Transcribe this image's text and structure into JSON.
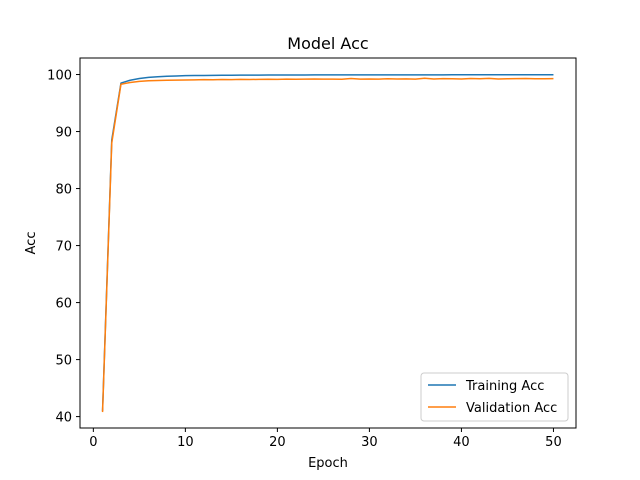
{
  "chart_data": {
    "type": "line",
    "title": "Model Acc",
    "xlabel": "Epoch",
    "ylabel": "Acc",
    "xlim": [
      -1.45,
      52.45
    ],
    "ylim": [
      38,
      102.9
    ],
    "xticks": [
      0,
      10,
      20,
      30,
      40,
      50
    ],
    "yticks": [
      40,
      50,
      60,
      70,
      80,
      90,
      100
    ],
    "grid": false,
    "legend_position": "lower-right",
    "x": [
      1,
      2,
      3,
      4,
      5,
      6,
      7,
      8,
      9,
      10,
      11,
      12,
      13,
      14,
      15,
      16,
      17,
      18,
      19,
      20,
      21,
      22,
      23,
      24,
      25,
      26,
      27,
      28,
      29,
      30,
      31,
      32,
      33,
      34,
      35,
      36,
      37,
      38,
      39,
      40,
      41,
      42,
      43,
      44,
      45,
      46,
      47,
      48,
      49,
      50
    ],
    "series": [
      {
        "name": "Training Acc",
        "color": "#1f77b4",
        "values": [
          41.0,
          88.5,
          98.5,
          99.0,
          99.3,
          99.5,
          99.6,
          99.7,
          99.75,
          99.8,
          99.82,
          99.84,
          99.86,
          99.87,
          99.88,
          99.89,
          99.9,
          99.9,
          99.91,
          99.91,
          99.92,
          99.92,
          99.92,
          99.93,
          99.93,
          99.93,
          99.93,
          99.94,
          99.94,
          99.94,
          99.94,
          99.94,
          99.95,
          99.95,
          99.95,
          99.95,
          99.95,
          99.95,
          99.96,
          99.96,
          99.96,
          99.96,
          99.96,
          99.96,
          99.96,
          99.97,
          99.97,
          99.97,
          99.97,
          99.97
        ]
      },
      {
        "name": "Validation Acc",
        "color": "#ff7f0e",
        "values": [
          40.8,
          88.0,
          98.3,
          98.6,
          98.8,
          98.9,
          98.95,
          99.0,
          99.02,
          99.05,
          99.07,
          99.1,
          99.08,
          99.12,
          99.1,
          99.15,
          99.13,
          99.15,
          99.18,
          99.16,
          99.2,
          99.18,
          99.2,
          99.22,
          99.19,
          99.2,
          99.18,
          99.3,
          99.2,
          99.22,
          99.2,
          99.25,
          99.22,
          99.24,
          99.2,
          99.35,
          99.22,
          99.28,
          99.25,
          99.22,
          99.3,
          99.25,
          99.32,
          99.22,
          99.25,
          99.28,
          99.3,
          99.25,
          99.27,
          99.28
        ]
      }
    ]
  }
}
